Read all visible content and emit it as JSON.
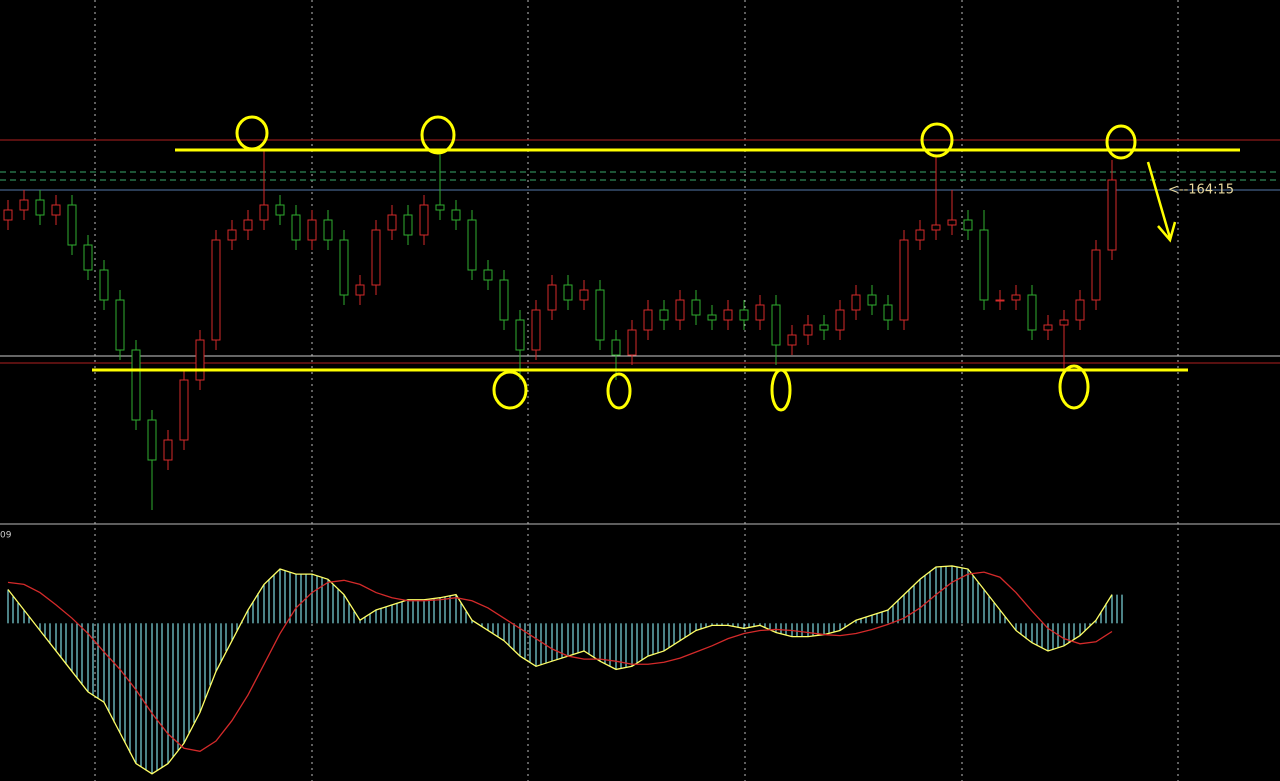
{
  "chart_data": [
    {
      "type": "candlestick",
      "open": [
        60,
        62,
        64,
        61,
        63,
        55,
        50,
        44,
        34,
        20,
        12,
        16,
        28,
        36,
        56,
        58,
        60,
        63,
        61,
        56,
        60,
        56,
        45,
        47,
        58,
        61,
        57,
        63,
        62,
        60,
        50,
        48,
        40,
        34,
        42,
        47,
        44,
        46,
        36,
        33,
        38,
        42,
        40,
        44,
        41,
        40,
        42,
        40,
        43,
        35,
        37,
        39,
        38,
        42,
        45,
        43,
        40,
        56,
        58,
        59,
        60,
        58,
        44,
        44,
        45,
        38,
        39,
        40,
        44,
        54
      ],
      "high": [
        64,
        66,
        66,
        65,
        65,
        57,
        52,
        46,
        36,
        22,
        18,
        30,
        38,
        58,
        60,
        62,
        74,
        65,
        63,
        62,
        62,
        58,
        49,
        60,
        63,
        63,
        65,
        74,
        64,
        62,
        52,
        50,
        42,
        44,
        49,
        49,
        48,
        48,
        38,
        40,
        44,
        44,
        46,
        46,
        43,
        44,
        44,
        45,
        45,
        39,
        41,
        41,
        44,
        47,
        47,
        45,
        58,
        60,
        73,
        66,
        62,
        62,
        46,
        47,
        47,
        41,
        42,
        46,
        56,
        72
      ],
      "low": [
        58,
        60,
        59,
        59,
        53,
        48,
        42,
        32,
        18,
        2,
        10,
        14,
        26,
        34,
        54,
        56,
        58,
        59,
        54,
        54,
        54,
        43,
        43,
        45,
        56,
        55,
        55,
        60,
        58,
        48,
        46,
        38,
        28,
        32,
        40,
        42,
        42,
        34,
        28,
        31,
        36,
        38,
        38,
        39,
        38,
        38,
        38,
        38,
        31,
        33,
        35,
        36,
        36,
        40,
        41,
        38,
        38,
        54,
        56,
        57,
        56,
        42,
        42,
        42,
        36,
        36,
        30,
        38,
        42,
        52
      ],
      "close": [
        62,
        64,
        61,
        63,
        55,
        50,
        44,
        34,
        20,
        12,
        16,
        28,
        36,
        56,
        58,
        60,
        63,
        61,
        56,
        60,
        56,
        45,
        47,
        58,
        61,
        57,
        63,
        62,
        60,
        50,
        48,
        40,
        34,
        42,
        47,
        44,
        46,
        36,
        33,
        38,
        42,
        40,
        44,
        41,
        40,
        42,
        40,
        43,
        35,
        37,
        39,
        38,
        42,
        45,
        43,
        40,
        56,
        58,
        59,
        60,
        58,
        44,
        44,
        45,
        38,
        39,
        40,
        44,
        54,
        68
      ],
      "up_color": "#d42a2a",
      "down_color": "#2fae2f",
      "ylim": [
        0,
        104
      ],
      "levels": [
        74,
        30
      ],
      "level_color": "#ffff00",
      "annotation": "<--164:15",
      "annotation_value": 66
    },
    {
      "type": "macd",
      "label": "09",
      "values": [
        33,
        13,
        -7,
        -27,
        -47,
        -67,
        -77,
        -107,
        -137,
        -147,
        -137,
        -117,
        -87,
        -47,
        -17,
        13,
        38,
        53,
        48,
        48,
        43,
        28,
        3,
        13,
        18,
        23,
        23,
        25,
        28,
        3,
        -7,
        -17,
        -32,
        -42,
        -37,
        -32,
        -27,
        -37,
        -45,
        -42,
        -32,
        -27,
        -17,
        -7,
        -2,
        -2,
        -5,
        -2,
        -9,
        -13,
        -13,
        -11,
        -7,
        3,
        8,
        13,
        28,
        43,
        55,
        56,
        53,
        33,
        13,
        -7,
        -19,
        -27,
        -22,
        -12,
        3,
        28
      ],
      "signal": [
        40,
        38,
        30,
        18,
        5,
        -10,
        -28,
        -45,
        -65,
        -88,
        -108,
        -122,
        -125,
        -115,
        -95,
        -70,
        -40,
        -10,
        15,
        30,
        40,
        42,
        38,
        30,
        25,
        22,
        22,
        23,
        25,
        22,
        15,
        5,
        -5,
        -15,
        -25,
        -32,
        -35,
        -35,
        -37,
        -40,
        -40,
        -38,
        -34,
        -28,
        -22,
        -15,
        -10,
        -7,
        -6,
        -7,
        -9,
        -11,
        -12,
        -10,
        -6,
        -1,
        5,
        15,
        28,
        40,
        48,
        50,
        45,
        30,
        12,
        -5,
        -15,
        -20,
        -18,
        -8
      ],
      "hist_color": "#7fd8e0",
      "line_color": "#ffff66",
      "signal_color": "#d42a2a",
      "ylim": [
        -154,
        96
      ]
    }
  ]
}
